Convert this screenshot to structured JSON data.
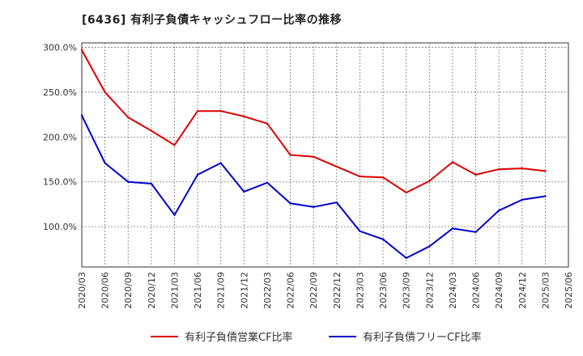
{
  "chart_data": {
    "type": "line",
    "title": "[6436]  有利子負債キャッシュフロー比率の推移",
    "xlabel": "",
    "ylabel": "",
    "ylim": [
      55,
      305
    ],
    "yticks": [
      "300.0%",
      "250.0%",
      "200.0%",
      "150.0%",
      "100.0%"
    ],
    "ytick_values": [
      300,
      250,
      200,
      150,
      100
    ],
    "x": [
      "2020/03",
      "2020/06",
      "2020/09",
      "2020/12",
      "2021/03",
      "2021/06",
      "2021/09",
      "2021/12",
      "2022/03",
      "2022/06",
      "2022/09",
      "2022/12",
      "2023/03",
      "2023/06",
      "2023/09",
      "2023/12",
      "2024/03",
      "2024/06",
      "2024/09",
      "2024/12",
      "2025/03",
      "2025/06"
    ],
    "grid": true,
    "legend_position": "bottom",
    "series": [
      {
        "name": "有利子負債営業CF比率",
        "color": "#dd0000",
        "values": [
          297,
          250,
          222,
          207,
          191,
          229,
          229,
          223,
          215,
          180,
          178,
          167,
          156,
          155,
          138,
          151,
          172,
          158,
          164,
          165,
          162,
          null
        ]
      },
      {
        "name": "有利子負債フリーCF比率",
        "color": "#0000cc",
        "values": [
          224,
          171,
          150,
          148,
          113,
          158,
          171,
          139,
          149,
          126,
          122,
          127,
          95,
          86,
          65,
          78,
          98,
          94,
          118,
          130,
          134,
          null
        ]
      }
    ]
  }
}
